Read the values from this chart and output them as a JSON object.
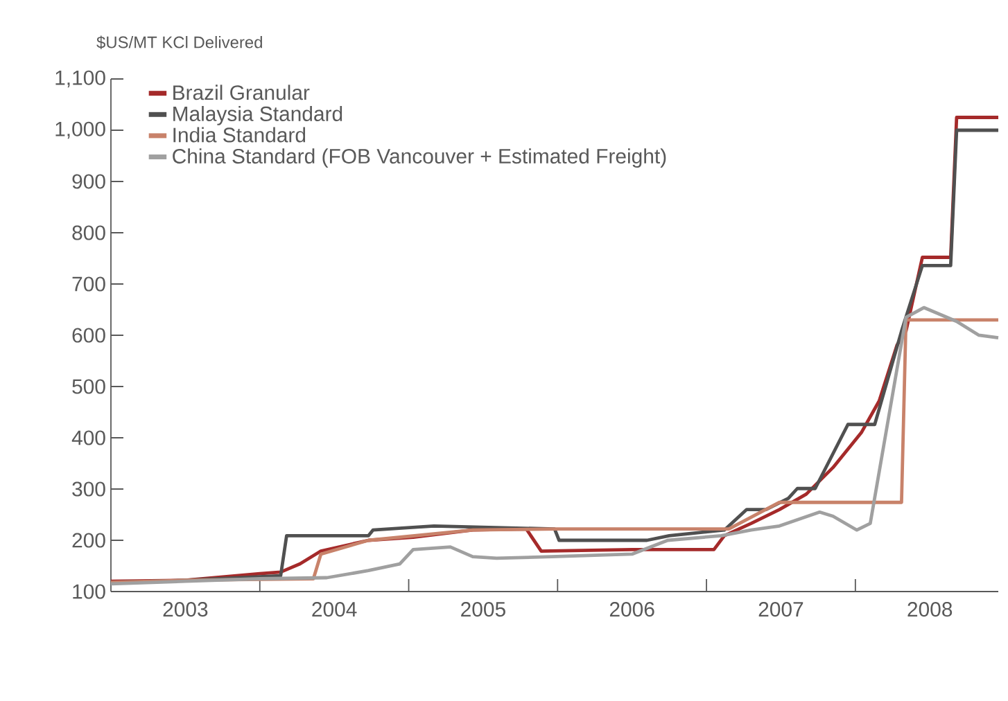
{
  "chart_data": {
    "type": "line",
    "ylabel": "$US/MT KCl Delivered",
    "xlim": [
      2003,
      2008.96
    ],
    "ylim": [
      100,
      1100
    ],
    "xticks": [
      {
        "value": 2004,
        "label": null
      },
      {
        "value": 2005,
        "label": null
      },
      {
        "value": 2006,
        "label": null
      },
      {
        "value": 2007,
        "label": null
      },
      {
        "value": 2008,
        "label": null
      },
      {
        "value": 2003.5,
        "label": "2003"
      },
      {
        "value": 2004.5,
        "label": "2004"
      },
      {
        "value": 2005.5,
        "label": "2005"
      },
      {
        "value": 2006.5,
        "label": "2006"
      },
      {
        "value": 2007.5,
        "label": "2007"
      },
      {
        "value": 2008.5,
        "label": "2008"
      }
    ],
    "yticks": [
      100,
      200,
      300,
      400,
      500,
      600,
      700,
      800,
      900,
      {
        "value": 1000,
        "label": "1,000"
      },
      {
        "value": 1100,
        "label": "1,100"
      }
    ],
    "grid": false,
    "legend": "top left",
    "marker": "none",
    "line_style": "solid",
    "series": [
      {
        "name": "Brazil Granular",
        "color": "#a52a2a",
        "x": [
          2003.0,
          2003.5,
          2004.0,
          2004.14,
          2004.27,
          2004.41,
          2004.73,
          2005.03,
          2005.43,
          2005.79,
          2005.89,
          2006.5,
          2007.05,
          2007.12,
          2007.3,
          2007.49,
          2007.67,
          2007.85,
          2008.04,
          2008.16,
          2008.28,
          2008.34,
          2008.45,
          2008.64,
          2008.68,
          2008.96
        ],
        "values": [
          120,
          122,
          135,
          138,
          154,
          179,
          200,
          206,
          220,
          222,
          179,
          182,
          182,
          209,
          233,
          260,
          290,
          342,
          410,
          472,
          581,
          608,
          752,
          752,
          1025,
          1025
        ]
      },
      {
        "name": "Malaysia Standard",
        "color": "#505050",
        "x": [
          2003.0,
          2003.5,
          2004.14,
          2004.18,
          2004.73,
          2004.76,
          2005.17,
          2005.98,
          2006.01,
          2006.6,
          2006.75,
          2007.12,
          2007.27,
          2007.4,
          2007.55,
          2007.61,
          2007.73,
          2007.95,
          2008.13,
          2008.31,
          2008.45,
          2008.64,
          2008.68,
          2008.96
        ],
        "values": [
          118,
          122,
          131,
          209,
          209,
          220,
          228,
          222,
          200,
          200,
          209,
          220,
          260,
          260,
          282,
          301,
          301,
          426,
          426,
          608,
          736,
          736,
          1000,
          1000
        ]
      },
      {
        "name": "India Standard",
        "color": "#c8826a",
        "x": [
          2003.0,
          2003.5,
          2004.36,
          2004.41,
          2004.73,
          2005.43,
          2006.0,
          2007.15,
          2007.49,
          2008.31,
          2008.34,
          2008.96
        ],
        "values": [
          118,
          122,
          125,
          173,
          200,
          220,
          222,
          222,
          274,
          274,
          630,
          630
        ]
      },
      {
        "name": "China Standard (FOB Vancouver + Estimated Freight)",
        "color": "#a0a0a0",
        "x": [
          2003.0,
          2003.5,
          2004.0,
          2004.45,
          2004.73,
          2004.94,
          2005.03,
          2005.28,
          2005.43,
          2005.59,
          2005.96,
          2006.5,
          2006.74,
          2007.1,
          2007.3,
          2007.49,
          2007.76,
          2007.85,
          2008.01,
          2008.1,
          2008.28,
          2008.34,
          2008.46,
          2008.68,
          2008.83,
          2008.96
        ],
        "values": [
          115,
          120,
          125,
          127,
          141,
          154,
          182,
          187,
          168,
          165,
          168,
          173,
          200,
          209,
          220,
          228,
          255,
          247,
          220,
          233,
          535,
          635,
          654,
          627,
          600,
          595
        ]
      }
    ]
  }
}
